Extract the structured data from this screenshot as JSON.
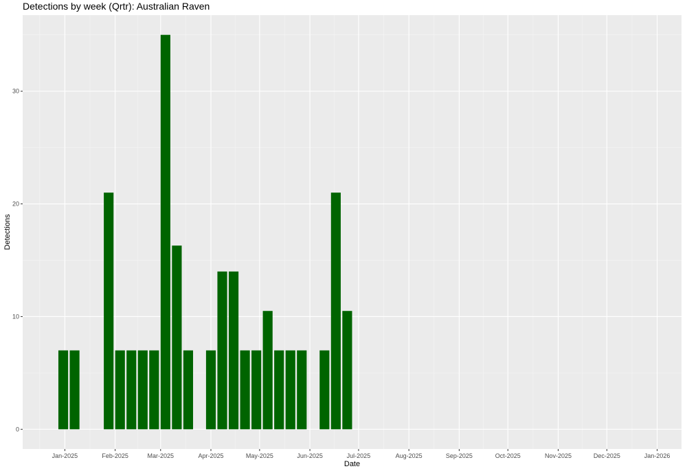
{
  "chart_data": {
    "type": "bar",
    "title": "Detections by week (Qrtr): Australian Raven",
    "xlabel": "Date",
    "ylabel": "Detections",
    "x_ticks": [
      {
        "date": "2025-01-01",
        "label": "Jan-2025"
      },
      {
        "date": "2025-02-01",
        "label": "Feb-2025"
      },
      {
        "date": "2025-03-01",
        "label": "Mar-2025"
      },
      {
        "date": "2025-04-01",
        "label": "Apr-2025"
      },
      {
        "date": "2025-05-01",
        "label": "May-2025"
      },
      {
        "date": "2025-06-01",
        "label": "Jun-2025"
      },
      {
        "date": "2025-07-01",
        "label": "Jul-2025"
      },
      {
        "date": "2025-08-01",
        "label": "Aug-2025"
      },
      {
        "date": "2025-09-01",
        "label": "Sep-2025"
      },
      {
        "date": "2025-10-01",
        "label": "Oct-2025"
      },
      {
        "date": "2025-11-01",
        "label": "Nov-2025"
      },
      {
        "date": "2025-12-01",
        "label": "Dec-2025"
      },
      {
        "date": "2026-01-01",
        "label": "Jan-2026"
      }
    ],
    "y_ticks": [
      0,
      10,
      20,
      30
    ],
    "ylim": [
      -1.75,
      36.75
    ],
    "xlim": [
      "2024-12-06",
      "2026-01-16"
    ],
    "bar_width_days": 6,
    "bar_color": "#006400",
    "panel_color": "#EBEBEB",
    "grid": true,
    "bars": [
      {
        "date": "2024-12-31",
        "value": 7
      },
      {
        "date": "2025-01-07",
        "value": 7
      },
      {
        "date": "2025-01-28",
        "value": 21
      },
      {
        "date": "2025-02-04",
        "value": 7
      },
      {
        "date": "2025-02-11",
        "value": 7
      },
      {
        "date": "2025-02-18",
        "value": 7
      },
      {
        "date": "2025-02-25",
        "value": 7
      },
      {
        "date": "2025-03-04",
        "value": 35
      },
      {
        "date": "2025-03-11",
        "value": 16.3
      },
      {
        "date": "2025-03-18",
        "value": 7
      },
      {
        "date": "2025-04-01",
        "value": 7
      },
      {
        "date": "2025-04-08",
        "value": 14
      },
      {
        "date": "2025-04-15",
        "value": 14
      },
      {
        "date": "2025-04-22",
        "value": 7
      },
      {
        "date": "2025-04-29",
        "value": 7
      },
      {
        "date": "2025-05-06",
        "value": 10.5
      },
      {
        "date": "2025-05-13",
        "value": 7
      },
      {
        "date": "2025-05-20",
        "value": 7
      },
      {
        "date": "2025-05-27",
        "value": 7
      },
      {
        "date": "2025-06-10",
        "value": 7
      },
      {
        "date": "2025-06-17",
        "value": 21
      },
      {
        "date": "2025-06-24",
        "value": 10.5
      }
    ]
  }
}
